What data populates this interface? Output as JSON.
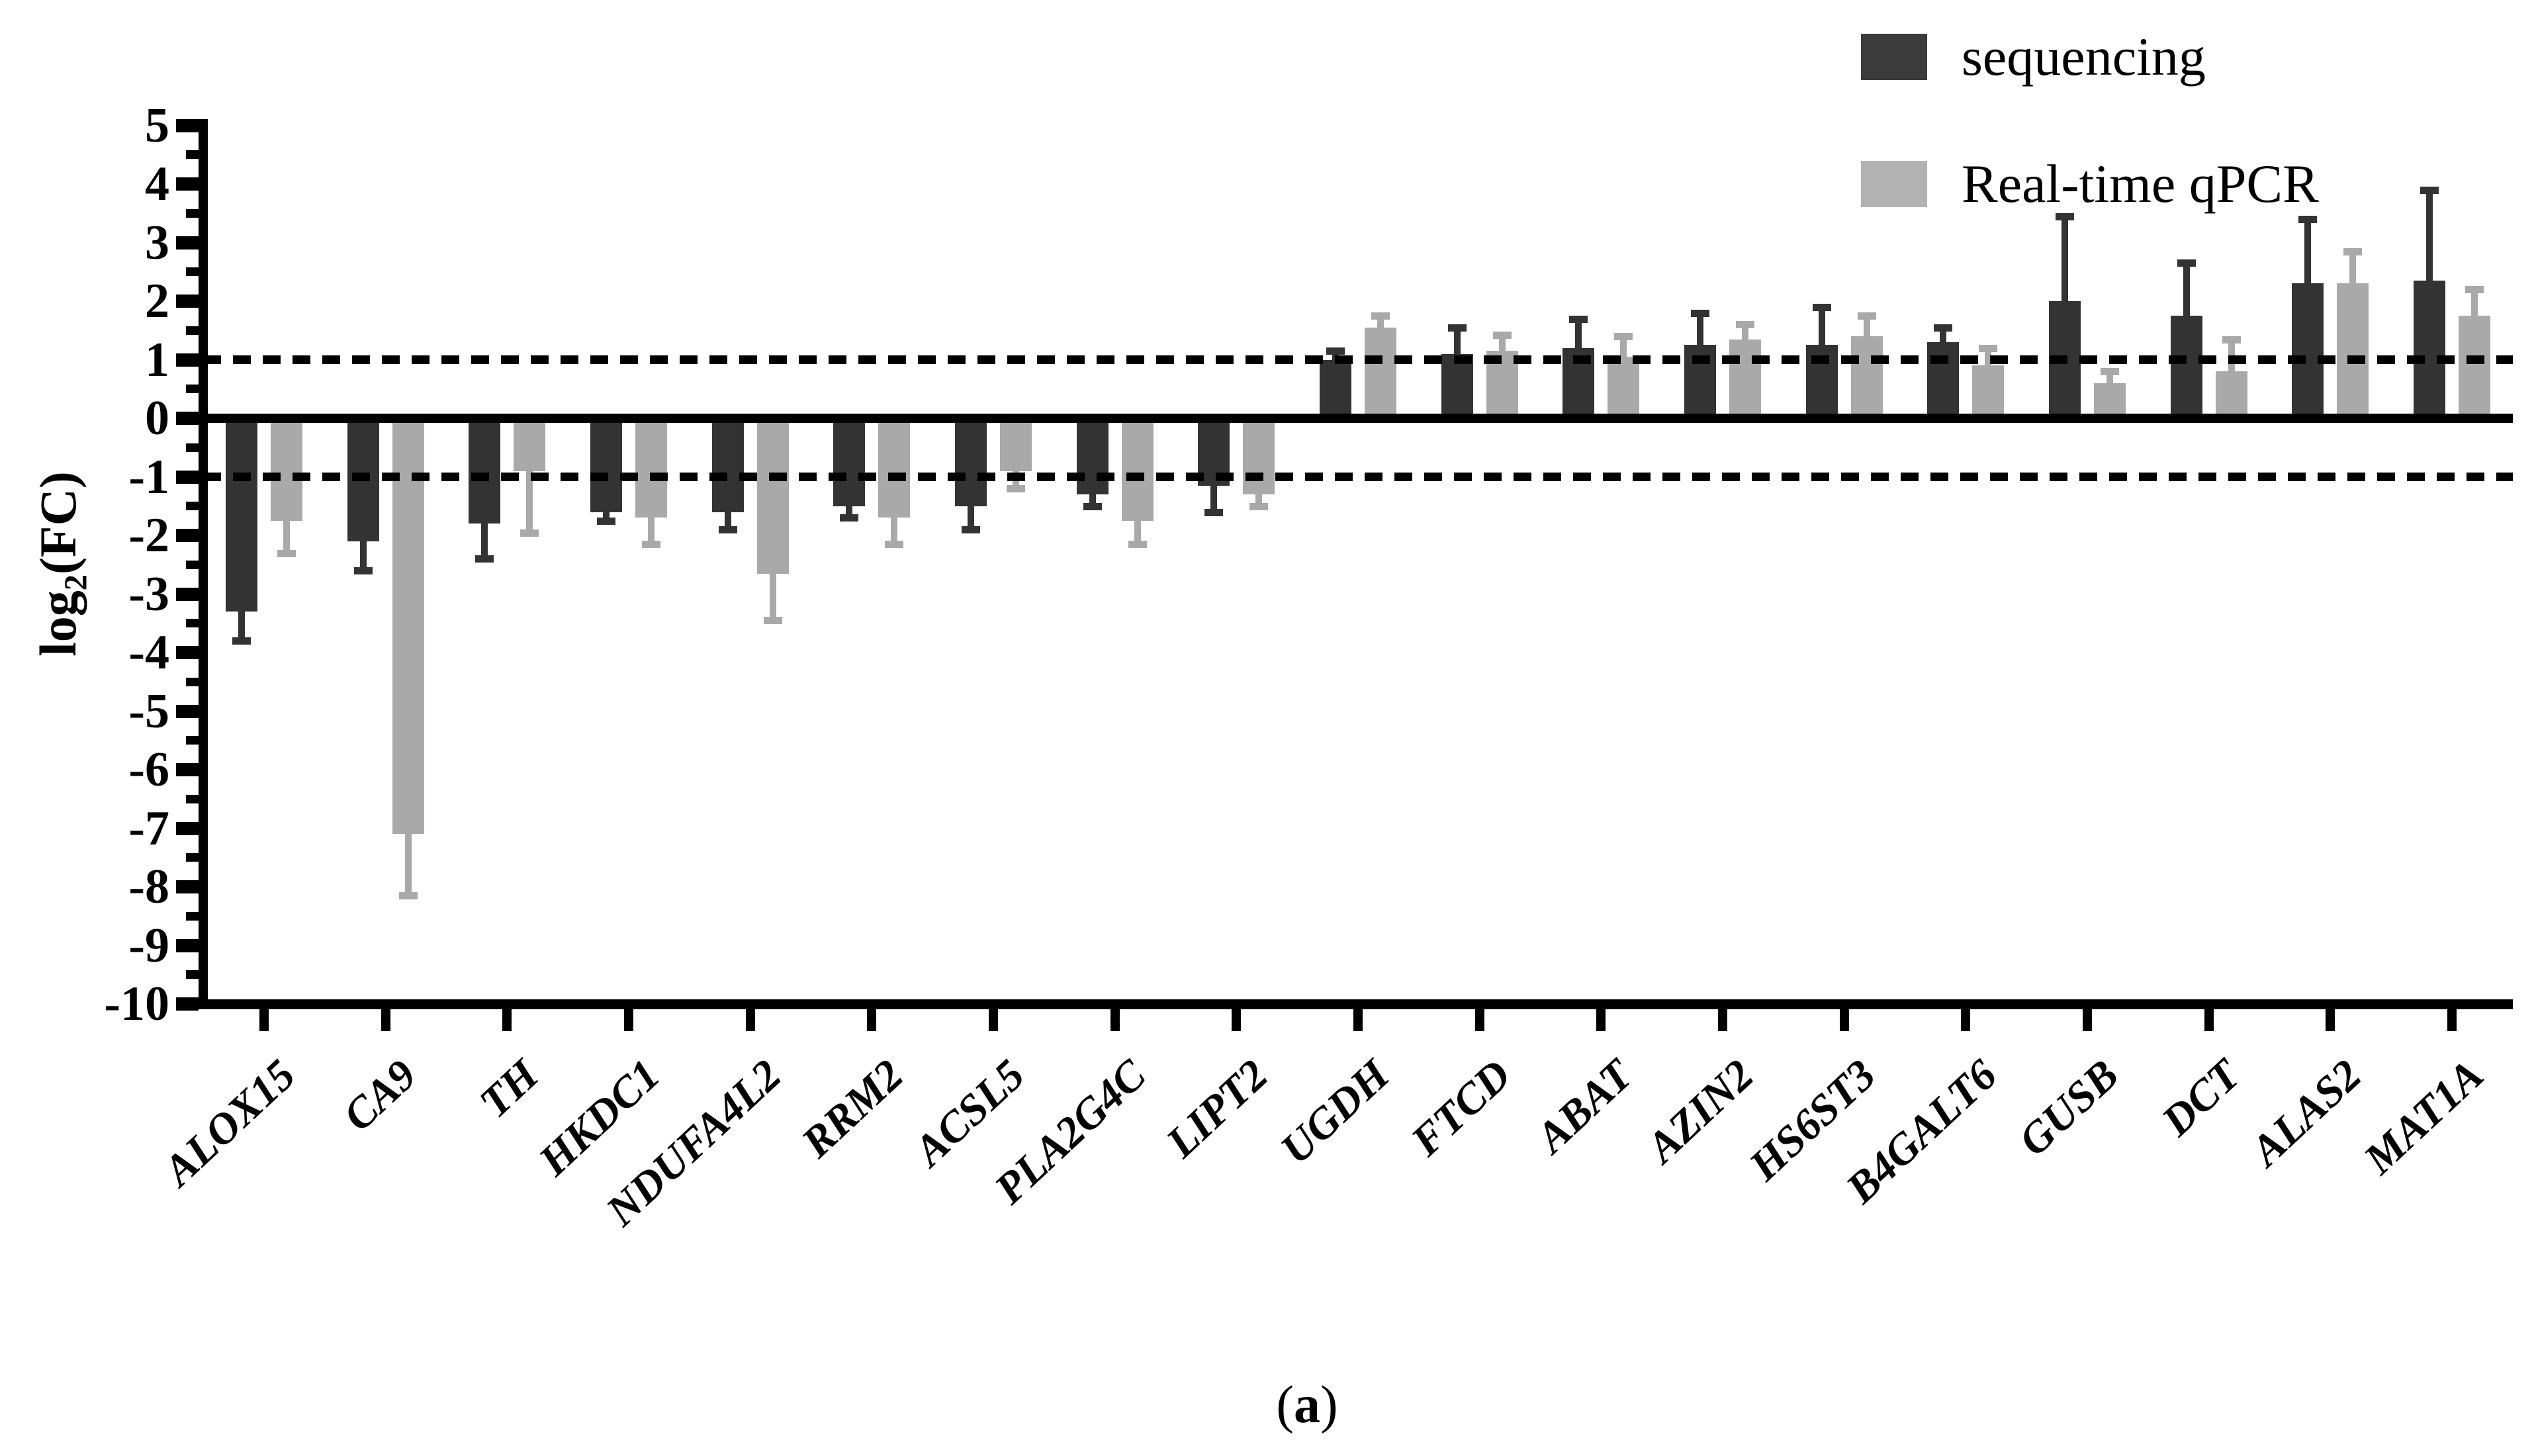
{
  "figure": {
    "caption_parts": {
      "open": "(",
      "letter": "a",
      "close": ")"
    }
  },
  "legend": {
    "position": "top-right",
    "items": [
      {
        "label": "sequencing",
        "color": "#3b3b3b"
      },
      {
        "label": "Real-time qPCR",
        "color": "#b2b2b2"
      }
    ]
  },
  "chart_data": {
    "type": "bar",
    "title": "",
    "xlabel": "",
    "ylabel": {
      "prefix": "log",
      "sub": "2",
      "suffix": "(FC)"
    },
    "ylim": [
      -10,
      5
    ],
    "ytick_step": 1,
    "ytick_minor_step": 0.5,
    "ytick_labels": [
      "5",
      "4",
      "3",
      "2",
      "1",
      "0",
      "-1",
      "-2",
      "-3",
      "-4",
      "-5",
      "-6",
      "-7",
      "-8",
      "-9",
      "-10"
    ],
    "grid": false,
    "legend_position": "top-right",
    "error_bars": "one-sided, extending away from zero, with caps",
    "ref_lines": [
      {
        "y": 1,
        "style": "dashed"
      },
      {
        "y": 0,
        "style": "solid"
      },
      {
        "y": -1,
        "style": "dashed"
      }
    ],
    "categories": [
      "ALOX15",
      "CA9",
      "TH",
      "HKDC1",
      "NDUFA4L2",
      "RRM2",
      "ACSL5",
      "PLA2G4C",
      "LIPT2",
      "UGDH",
      "FTCD",
      "ABAT",
      "AZIN2",
      "HS6ST3",
      "B4GALT6",
      "GUSB",
      "DCT",
      "ALAS2",
      "MAT1A"
    ],
    "series": [
      {
        "name": "sequencing",
        "color": "#333333",
        "values": [
          -3.3,
          -2.1,
          -1.8,
          -1.6,
          -1.6,
          -1.5,
          -1.5,
          -1.3,
          -1.15,
          1.0,
          1.1,
          1.2,
          1.25,
          1.25,
          1.3,
          2.0,
          1.75,
          2.3,
          2.35
        ],
        "errors": [
          0.5,
          0.5,
          0.6,
          0.15,
          0.3,
          0.2,
          0.4,
          0.2,
          0.45,
          0.15,
          0.45,
          0.5,
          0.55,
          0.65,
          0.25,
          1.45,
          0.9,
          1.1,
          1.55
        ]
      },
      {
        "name": "Real-time qPCR",
        "color": "#a9a9a9",
        "values": [
          -1.75,
          -7.1,
          -0.9,
          -1.7,
          -2.65,
          -1.7,
          -0.9,
          -1.75,
          -1.3,
          1.55,
          1.15,
          1.05,
          1.35,
          1.4,
          0.9,
          0.6,
          0.8,
          2.3,
          1.75
        ],
        "errors": [
          0.55,
          1.05,
          1.05,
          0.45,
          0.8,
          0.45,
          0.3,
          0.4,
          0.2,
          0.2,
          0.27,
          0.35,
          0.25,
          0.35,
          0.3,
          0.2,
          0.55,
          0.55,
          0.45
        ]
      }
    ]
  }
}
